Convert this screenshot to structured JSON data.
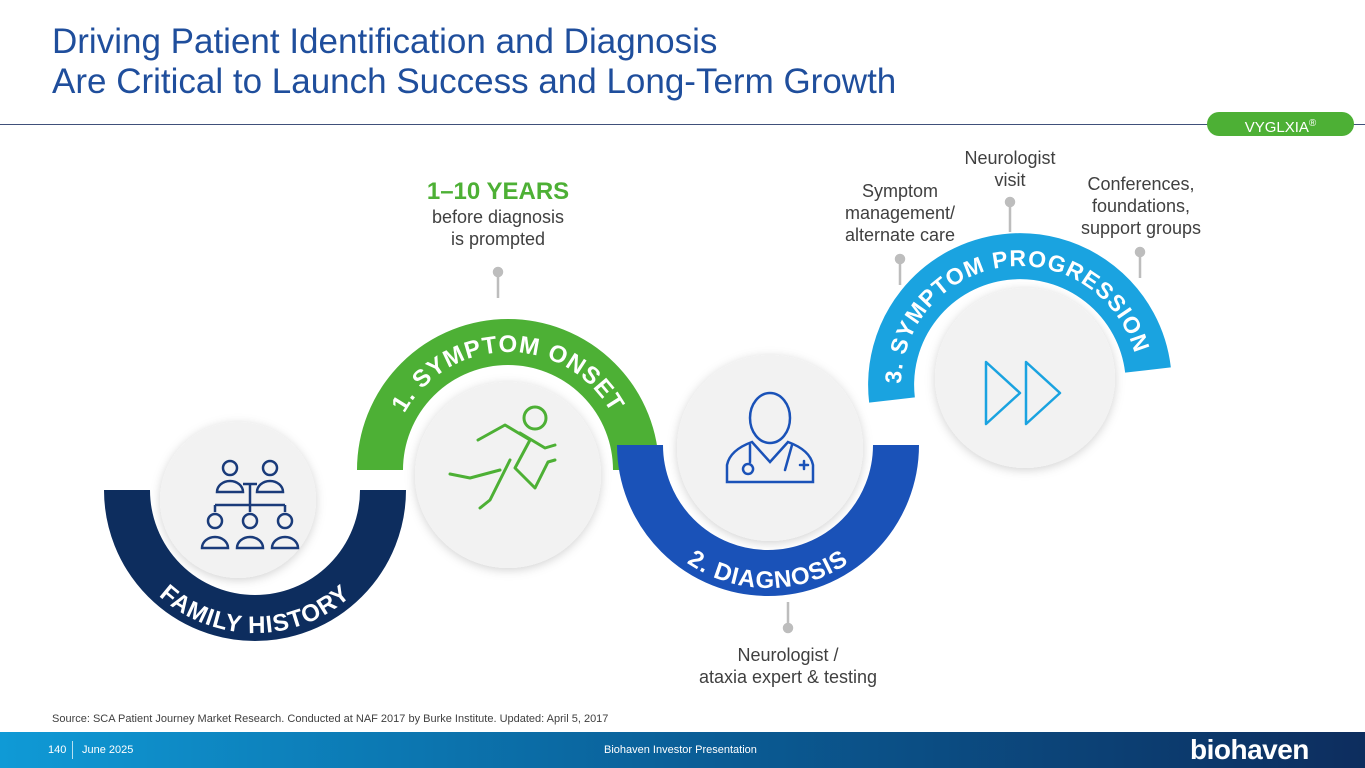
{
  "title": {
    "line1": "Driving Patient Identification and Diagnosis",
    "line2": "Are Critical to Launch Success and Long-Term Growth"
  },
  "badge": {
    "label": "VYGLXIA",
    "mark": "®"
  },
  "stages": {
    "family_history": {
      "label": "FAMILY HISTORY",
      "color": "#0d2d5e",
      "icon": "family-tree-icon"
    },
    "symptom_onset": {
      "label": "1. SYMPTOM ONSET",
      "color": "#4db035",
      "icon": "running-person-icon"
    },
    "diagnosis": {
      "label": "2. DIAGNOSIS",
      "color": "#1a52b8",
      "icon": "doctor-icon"
    },
    "symptom_progression": {
      "label": "3. SYMPTOM PROGRESSION",
      "color": "#1aa3e0",
      "icon": "fast-forward-icon"
    }
  },
  "callouts": {
    "years_big": "1–10 YEARS",
    "years_line1": "before diagnosis",
    "years_line2": "is prompted",
    "symptom_mgmt": [
      "Symptom",
      "management/",
      "alternate care"
    ],
    "neurologist_visit": [
      "Neurologist",
      "visit"
    ],
    "conferences": [
      "Conferences,",
      "foundations,",
      "support groups"
    ],
    "neurologist_testing": [
      "Neurologist /",
      "ataxia expert & testing"
    ]
  },
  "source": "Source: SCA Patient Journey Market Research. Conducted at NAF 2017 by Burke Institute. Updated: April 5, 2017",
  "footer": {
    "page": "140",
    "date": "June 2025",
    "center": "Biohaven Investor Presentation",
    "logo": "biohaven"
  }
}
